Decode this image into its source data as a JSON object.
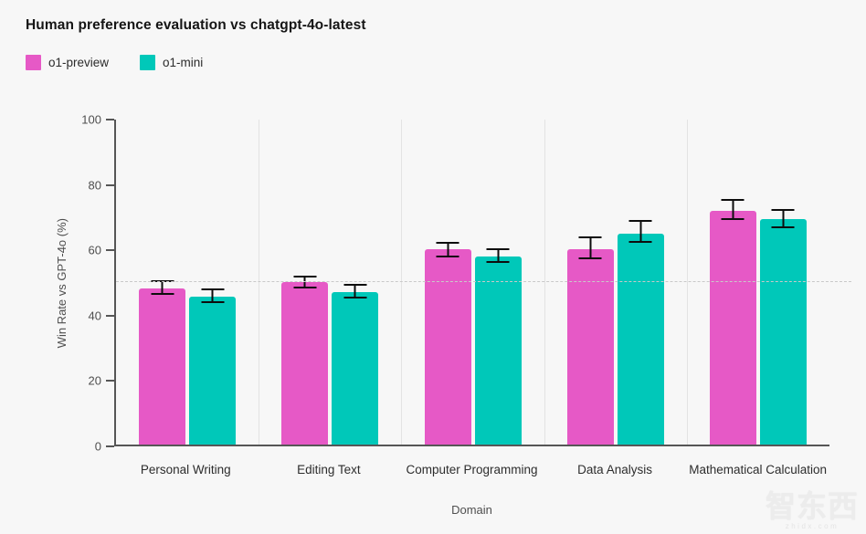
{
  "colors": {
    "background": "#f7f7f7",
    "axis": "#565656",
    "grid": "#e3e3e3",
    "reference_line": "#c9c9c9",
    "error_bar": "#0d0d0d",
    "o1_preview": "#e659c6",
    "o1_mini": "#00c8b9"
  },
  "header": {
    "title": "Human preference evaluation vs chatgpt-4o-latest"
  },
  "legend": {
    "items": [
      {
        "label": "o1-preview",
        "color": "#e659c6"
      },
      {
        "label": "o1-mini",
        "color": "#00c8b9"
      }
    ]
  },
  "watermark": {
    "text": "智东西",
    "subtext": "zhidx.com"
  },
  "chart_data": {
    "type": "bar",
    "title": "Human preference evaluation vs chatgpt-4o-latest",
    "xlabel": "Domain",
    "ylabel": "Win Rate vs GPT-4o (%)",
    "ylim": [
      0,
      100
    ],
    "yticks": [
      0,
      20,
      40,
      60,
      80,
      100
    ],
    "reference_line_y": 50,
    "grid": "vertical separators between category groups",
    "legend_position": "top-left",
    "error_bars": true,
    "categories": [
      "Personal Writing",
      "Editing Text",
      "Computer Programming",
      "Data Analysis",
      "Mathematical Calculation"
    ],
    "series": [
      {
        "name": "o1-preview",
        "color": "#e659c6",
        "values": [
          48,
          50,
          60,
          60,
          72
        ],
        "error_low": [
          46,
          48,
          57.5,
          57,
          69
        ],
        "error_high": [
          50.5,
          52,
          62.5,
          64,
          75.5
        ]
      },
      {
        "name": "o1-mini",
        "color": "#00c8b9",
        "values": [
          45.5,
          47,
          58,
          65,
          69.5
        ],
        "error_low": [
          43.5,
          45,
          56,
          62,
          66.5
        ],
        "error_high": [
          48,
          49.5,
          60.5,
          69,
          72.5
        ]
      }
    ]
  }
}
